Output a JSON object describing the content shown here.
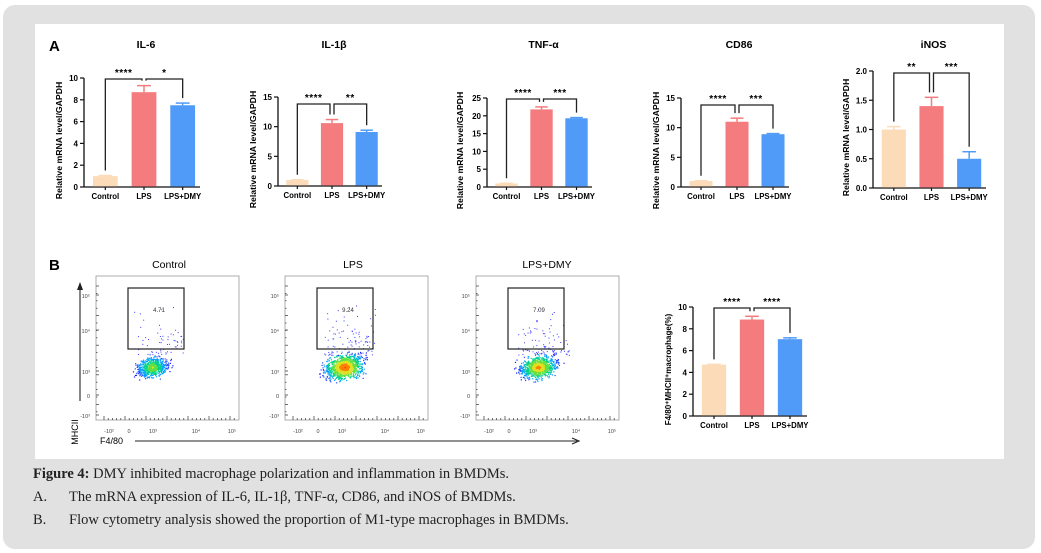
{
  "panel_labels": {
    "A": "A",
    "B": "B"
  },
  "colors": {
    "Control": "#fcdcb8",
    "LPS": "#f47c7e",
    "LPS+DMY": "#4f9bf7",
    "frame": "#e1e1e1"
  },
  "chart_data": [
    {
      "type": "bar",
      "id": "il6",
      "title": "IL-6",
      "ylabel": "Relative mRNA level/GAPDH",
      "categories": [
        "Control",
        "LPS",
        "LPS+DMY"
      ],
      "values": [
        1.0,
        8.7,
        7.5
      ],
      "errors": [
        0.05,
        0.6,
        0.2
      ],
      "ylim": [
        0,
        10
      ],
      "yticks": [
        0,
        2,
        4,
        6,
        8,
        10
      ],
      "ytick_labels": [
        "0",
        "2",
        "4",
        "6",
        "8",
        "10"
      ],
      "significance": [
        {
          "pair": [
            "Control",
            "LPS"
          ],
          "label": "****"
        },
        {
          "pair": [
            "LPS",
            "LPS+DMY"
          ],
          "label": "*"
        }
      ]
    },
    {
      "type": "bar",
      "id": "il1b",
      "title": "IL-1β",
      "ylabel": "Relative mRNA level/GAPDH",
      "categories": [
        "Control",
        "LPS",
        "LPS+DMY"
      ],
      "values": [
        1.0,
        10.6,
        9.1
      ],
      "errors": [
        0.05,
        0.6,
        0.3
      ],
      "ylim": [
        0,
        15
      ],
      "yticks": [
        0,
        5,
        10,
        15
      ],
      "ytick_labels": [
        "0",
        "5",
        "10",
        "15"
      ],
      "significance": [
        {
          "pair": [
            "Control",
            "LPS"
          ],
          "label": "****"
        },
        {
          "pair": [
            "LPS",
            "LPS+DMY"
          ],
          "label": "**"
        }
      ]
    },
    {
      "type": "bar",
      "id": "tnfa",
      "title": "TNF-α",
      "ylabel": "Relative mRNA level/GAPDH",
      "categories": [
        "Control",
        "LPS",
        "LPS+DMY"
      ],
      "values": [
        1.0,
        21.8,
        19.3
      ],
      "errors": [
        0.05,
        0.7,
        0.2
      ],
      "ylim": [
        0,
        25
      ],
      "yticks": [
        0,
        5,
        10,
        15,
        20,
        25
      ],
      "ytick_labels": [
        "0",
        "5",
        "10",
        "15",
        "20",
        "25"
      ],
      "significance": [
        {
          "pair": [
            "Control",
            "LPS"
          ],
          "label": "****"
        },
        {
          "pair": [
            "LPS",
            "LPS+DMY"
          ],
          "label": "***"
        }
      ]
    },
    {
      "type": "bar",
      "id": "cd86",
      "title": "CD86",
      "ylabel": "Relative mRNA level/GAPDH",
      "categories": [
        "Control",
        "LPS",
        "LPS+DMY"
      ],
      "values": [
        1.0,
        11.0,
        8.9
      ],
      "errors": [
        0.05,
        0.6,
        0.1
      ],
      "ylim": [
        0,
        15
      ],
      "yticks": [
        0,
        5,
        10,
        15
      ],
      "ytick_labels": [
        "0",
        "5",
        "10",
        "15"
      ],
      "significance": [
        {
          "pair": [
            "Control",
            "LPS"
          ],
          "label": "****"
        },
        {
          "pair": [
            "LPS",
            "LPS+DMY"
          ],
          "label": "***"
        }
      ]
    },
    {
      "type": "bar",
      "id": "inos",
      "title": "iNOS",
      "ylabel": "Relative mRNA level/GAPDH",
      "categories": [
        "Control",
        "LPS",
        "LPS+DMY"
      ],
      "values": [
        1.0,
        1.4,
        0.5
      ],
      "errors": [
        0.05,
        0.15,
        0.12
      ],
      "ylim": [
        0,
        2.0
      ],
      "yticks": [
        0,
        0.5,
        1.0,
        1.5,
        2.0
      ],
      "ytick_labels": [
        "0.0",
        "0.5",
        "1.0",
        "1.5",
        "2.0"
      ],
      "significance": [
        {
          "pair": [
            "Control",
            "LPS"
          ],
          "label": "**"
        },
        {
          "pair": [
            "LPS",
            "LPS+DMY"
          ],
          "label": "***"
        }
      ]
    },
    {
      "type": "scatter",
      "id": "flow",
      "subtype": "flow-cytometry-density",
      "xlabel": "F4/80",
      "ylabel": "MHCII",
      "xtick_labels": [
        "-10²",
        "0",
        "10³",
        "10⁴",
        "10⁵"
      ],
      "ytick_labels": [
        "10⁵",
        "10⁴",
        "10³",
        "0",
        "-10³"
      ],
      "panels": [
        {
          "title": "Control",
          "gate_percent": "4.71"
        },
        {
          "title": "LPS",
          "gate_percent": "9.24"
        },
        {
          "title": "LPS+DMY",
          "gate_percent": "7.09"
        }
      ]
    },
    {
      "type": "bar",
      "id": "m1pct",
      "title": "",
      "ylabel": "F4/80⁺MHCII⁺macrophage(%)",
      "categories": [
        "Control",
        "LPS",
        "LPS+DMY"
      ],
      "values": [
        4.71,
        8.85,
        7.05
      ],
      "errors": [
        0.03,
        0.3,
        0.12
      ],
      "ylim": [
        0,
        10
      ],
      "yticks": [
        0,
        2,
        4,
        6,
        8,
        10
      ],
      "ytick_labels": [
        "0",
        "2",
        "4",
        "6",
        "8",
        "10"
      ],
      "significance": [
        {
          "pair": [
            "Control",
            "LPS"
          ],
          "label": "****"
        },
        {
          "pair": [
            "LPS",
            "LPS+DMY"
          ],
          "label": "****"
        }
      ]
    }
  ],
  "caption": {
    "title_bold": "Figure 4:",
    "title_rest": " DMY inhibited macrophage polarization and inflammation in BMDMs.",
    "items": [
      {
        "label": "A.",
        "text": "The mRNA expression of IL-6, IL-1β, TNF-α, CD86, and iNOS of BMDMs."
      },
      {
        "label": "B.",
        "text": "Flow cytometry analysis showed the proportion of M1-type macrophages in BMDMs."
      }
    ]
  }
}
